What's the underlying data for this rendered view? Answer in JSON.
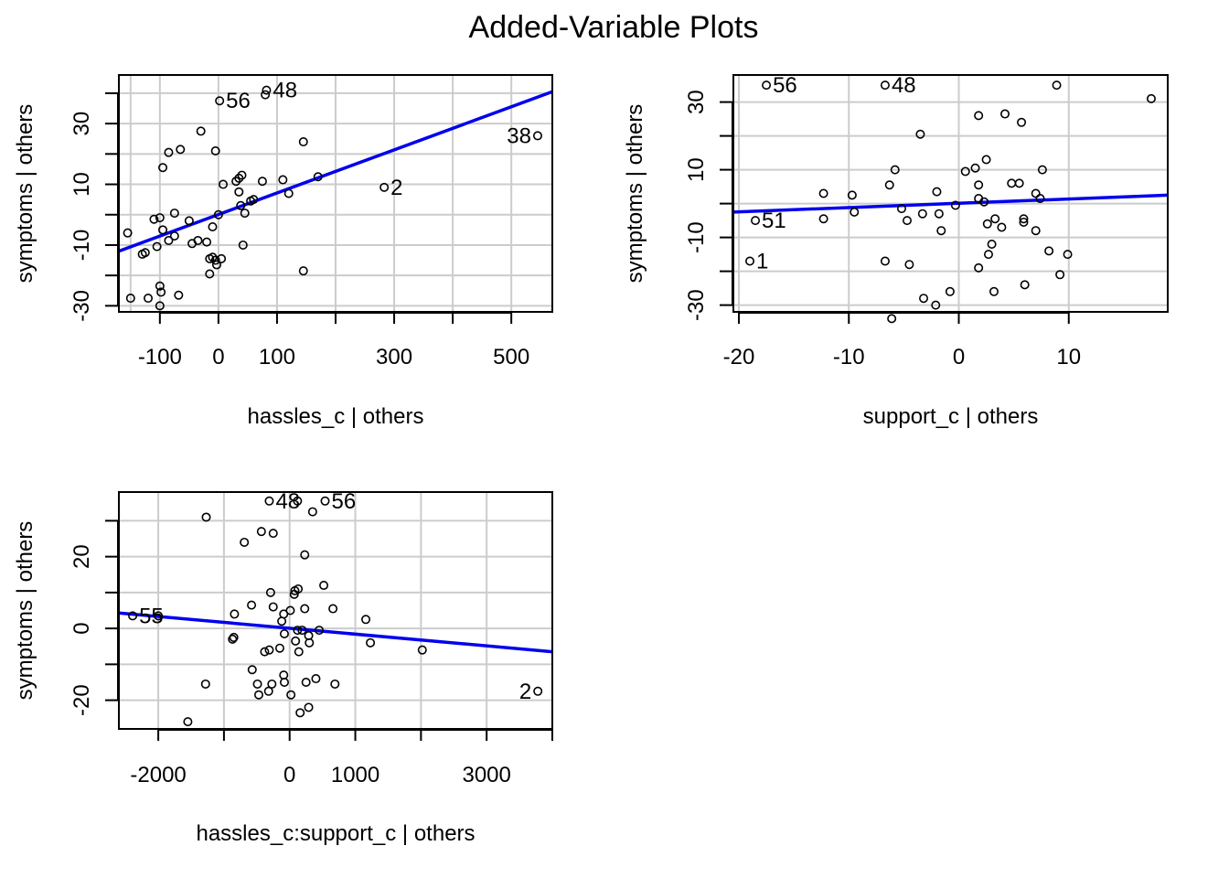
{
  "title": "Added-Variable Plots",
  "colors": {
    "fit_line": "#0000ee",
    "grid": "#cccccc",
    "points": "#000000"
  },
  "chart_data": [
    {
      "type": "scatter",
      "title": "",
      "xlabel": "hassles_c | others",
      "ylabel": "symptoms  | others",
      "xlim": [
        -170,
        570
      ],
      "ylim": [
        -32,
        46
      ],
      "xticks": [
        -100,
        0,
        100,
        300,
        500
      ],
      "xtick_labels": [
        "-100",
        "0",
        "100",
        "300",
        "500"
      ],
      "xtickmarks": [
        -100,
        0,
        100,
        200,
        300,
        400,
        500
      ],
      "yticks": [
        -30,
        -10,
        10,
        30
      ],
      "ytick_labels": [
        "-30",
        "-10",
        "10",
        "30"
      ],
      "ytickmarks": [
        -30,
        -20,
        -10,
        0,
        10,
        20,
        30,
        40
      ],
      "xgrid": [
        -150,
        -100,
        0,
        100,
        200,
        300,
        400,
        500
      ],
      "ygrid": [
        -30,
        -20,
        -10,
        0,
        10,
        20,
        30,
        40
      ],
      "fit_line": [
        [
          -170,
          -12
        ],
        [
          570,
          40.5
        ]
      ],
      "labeled_points": [
        {
          "label": "48",
          "x": 82,
          "y": 41
        },
        {
          "label": "56",
          "x": 2,
          "y": 37.5
        },
        {
          "label": "38",
          "x": 545,
          "y": 26
        },
        {
          "label": "2",
          "x": 283,
          "y": 9
        }
      ],
      "points": [
        [
          80,
          39.5
        ],
        [
          -30,
          27.5
        ],
        [
          145,
          24
        ],
        [
          -95,
          15.5
        ],
        [
          -85,
          20.5
        ],
        [
          -65,
          21.5
        ],
        [
          -5,
          21
        ],
        [
          35,
          12
        ],
        [
          40,
          13
        ],
        [
          30,
          11
        ],
        [
          75,
          11
        ],
        [
          110,
          11.5
        ],
        [
          170,
          12.5
        ],
        [
          8,
          10
        ],
        [
          35,
          7.5
        ],
        [
          120,
          7
        ],
        [
          60,
          5
        ],
        [
          55,
          4.5
        ],
        [
          38,
          3
        ],
        [
          45,
          0.5
        ],
        [
          0,
          0
        ],
        [
          -75,
          0.5
        ],
        [
          -50,
          -2
        ],
        [
          -100,
          -1
        ],
        [
          -110,
          -1.5
        ],
        [
          -10,
          -4
        ],
        [
          -95,
          -5
        ],
        [
          -155,
          -6
        ],
        [
          -75,
          -7
        ],
        [
          -85,
          -8.5
        ],
        [
          -35,
          -8.5
        ],
        [
          -45,
          -9.5
        ],
        [
          -20,
          -9
        ],
        [
          -105,
          -10.5
        ],
        [
          42,
          -10
        ],
        [
          -125,
          -12.5
        ],
        [
          -130,
          -13
        ],
        [
          -10,
          -14
        ],
        [
          -15,
          -14.5
        ],
        [
          5,
          -14.5
        ],
        [
          -5,
          -15
        ],
        [
          -3,
          -16.5
        ],
        [
          -15,
          -19.5
        ],
        [
          145,
          -18.5
        ],
        [
          -100,
          -23.5
        ],
        [
          -98,
          -25.5
        ],
        [
          -68,
          -26.5
        ],
        [
          -120,
          -27.5
        ],
        [
          -150,
          -27.5
        ],
        [
          -100,
          -30
        ]
      ]
    },
    {
      "type": "scatter",
      "title": "",
      "xlabel": "support_c | others",
      "ylabel": "symptoms  | others",
      "xlim": [
        -20.5,
        19
      ],
      "ylim": [
        -32,
        38
      ],
      "xticks": [
        -20,
        -10,
        0,
        10
      ],
      "xtick_labels": [
        "-20",
        "-10",
        "0",
        "10"
      ],
      "xtickmarks": [
        -20,
        -10,
        0,
        10
      ],
      "yticks": [
        -30,
        -10,
        10,
        30
      ],
      "ytick_labels": [
        "-30",
        "-10",
        "10",
        "30"
      ],
      "ytickmarks": [
        -30,
        -20,
        -10,
        0,
        10,
        20,
        30
      ],
      "xgrid": [
        -20,
        -10,
        0,
        10
      ],
      "ygrid": [
        -30,
        -20,
        -10,
        0,
        10,
        20,
        30
      ],
      "fit_line": [
        [
          -20.5,
          -2.5
        ],
        [
          19,
          2.5
        ]
      ],
      "labeled_points": [
        {
          "label": "56",
          "x": -17.5,
          "y": 35
        },
        {
          "label": "48",
          "x": -6.7,
          "y": 35
        },
        {
          "label": "51",
          "x": -18.5,
          "y": -5
        },
        {
          "label": "1",
          "x": -19,
          "y": -17
        }
      ],
      "points": [
        [
          8.9,
          35
        ],
        [
          17.5,
          31
        ],
        [
          1.8,
          26
        ],
        [
          4.2,
          26.5
        ],
        [
          5.7,
          24
        ],
        [
          -3.5,
          20.5
        ],
        [
          2.5,
          13
        ],
        [
          1.5,
          10.5
        ],
        [
          0.6,
          9.5
        ],
        [
          -5.8,
          10
        ],
        [
          7.6,
          10
        ],
        [
          -6.3,
          5.5
        ],
        [
          1.8,
          5.5
        ],
        [
          4.8,
          6
        ],
        [
          5.5,
          6
        ],
        [
          7.0,
          3
        ],
        [
          7.4,
          1.5
        ],
        [
          1.8,
          1.5
        ],
        [
          2.3,
          0.5
        ],
        [
          -12.3,
          3
        ],
        [
          -9.7,
          2.5
        ],
        [
          -2.0,
          3.5
        ],
        [
          -0.3,
          -0.5
        ],
        [
          -5.2,
          -1.5
        ],
        [
          -9.5,
          -2.5
        ],
        [
          -3.3,
          -3
        ],
        [
          -1.8,
          -3
        ],
        [
          -12.3,
          -4.5
        ],
        [
          -4.7,
          -5
        ],
        [
          3.3,
          -4.5
        ],
        [
          5.9,
          -4.5
        ],
        [
          5.9,
          -5.5
        ],
        [
          2.6,
          -6
        ],
        [
          3.9,
          -7
        ],
        [
          -1.6,
          -8
        ],
        [
          7.0,
          -8
        ],
        [
          8.2,
          -14
        ],
        [
          9.9,
          -15
        ],
        [
          3.0,
          -12
        ],
        [
          2.7,
          -15
        ],
        [
          -4.5,
          -18
        ],
        [
          -6.7,
          -17
        ],
        [
          9.2,
          -21
        ],
        [
          1.8,
          -19
        ],
        [
          6.0,
          -24
        ],
        [
          -0.8,
          -26
        ],
        [
          3.2,
          -26
        ],
        [
          -3.2,
          -28
        ],
        [
          -2.1,
          -30
        ],
        [
          -6.1,
          -34
        ]
      ]
    },
    {
      "type": "scatter",
      "title": "",
      "xlabel": "hassles_c:support_c | others",
      "ylabel": "symptoms  | others",
      "xlim": [
        -2600,
        4000
      ],
      "ylim": [
        -28,
        38
      ],
      "xticks": [
        -2000,
        0,
        1000,
        3000
      ],
      "xtick_labels": [
        "-2000",
        "0",
        "1000",
        "3000"
      ],
      "xtickmarks": [
        -2000,
        -1000,
        0,
        1000,
        2000,
        3000,
        4000
      ],
      "yticks": [
        -20,
        0,
        20
      ],
      "ytick_labels": [
        "-20",
        "0",
        "20"
      ],
      "ytickmarks": [
        -20,
        -10,
        0,
        10,
        20,
        30
      ],
      "xgrid": [
        -2000,
        -1000,
        0,
        1000,
        2000,
        3000
      ],
      "ygrid": [
        -20,
        -10,
        0,
        10,
        20,
        30
      ],
      "fit_line": [
        [
          -2600,
          4.3
        ],
        [
          4000,
          -6.5
        ]
      ],
      "labeled_points": [
        {
          "label": "48",
          "x": -310,
          "y": 35.5
        },
        {
          "label": "56",
          "x": 540,
          "y": 35.5
        },
        {
          "label": "55",
          "x": -2390,
          "y": 3.5
        },
        {
          "label": "2",
          "x": 3780,
          "y": -17.5
        }
      ],
      "points": [
        [
          120,
          35.5
        ],
        [
          350,
          32.5
        ],
        [
          -1270,
          31
        ],
        [
          -430,
          27
        ],
        [
          -250,
          26.5
        ],
        [
          -690,
          24
        ],
        [
          230,
          20.5
        ],
        [
          520,
          12
        ],
        [
          130,
          11
        ],
        [
          80,
          10.5
        ],
        [
          -290,
          10
        ],
        [
          70,
          9.5
        ],
        [
          660,
          5.5
        ],
        [
          -580,
          6.5
        ],
        [
          -250,
          6
        ],
        [
          230,
          5.5
        ],
        [
          10,
          5
        ],
        [
          -90,
          4
        ],
        [
          -840,
          4
        ],
        [
          -2000,
          3.5
        ],
        [
          1160,
          2.5
        ],
        [
          -120,
          2
        ],
        [
          -850,
          -2.5
        ],
        [
          -870,
          -3
        ],
        [
          190,
          -0.5
        ],
        [
          450,
          -0.5
        ],
        [
          120,
          -0.5
        ],
        [
          -80,
          -1.5
        ],
        [
          290,
          -2
        ],
        [
          90,
          -3.5
        ],
        [
          300,
          -4
        ],
        [
          -150,
          -5.5
        ],
        [
          1230,
          -4
        ],
        [
          -310,
          -6
        ],
        [
          -380,
          -6.5
        ],
        [
          140,
          -6.5
        ],
        [
          2020,
          -6
        ],
        [
          -570,
          -11.5
        ],
        [
          -90,
          -13
        ],
        [
          400,
          -14
        ],
        [
          -80,
          -15
        ],
        [
          250,
          -15
        ],
        [
          -490,
          -15.5
        ],
        [
          -270,
          -15.5
        ],
        [
          -1280,
          -15.5
        ],
        [
          690,
          -15.5
        ],
        [
          -320,
          -17.5
        ],
        [
          -470,
          -18.5
        ],
        [
          20,
          -18.5
        ],
        [
          290,
          -22
        ],
        [
          160,
          -23.5
        ],
        [
          -1550,
          -26
        ]
      ]
    }
  ]
}
